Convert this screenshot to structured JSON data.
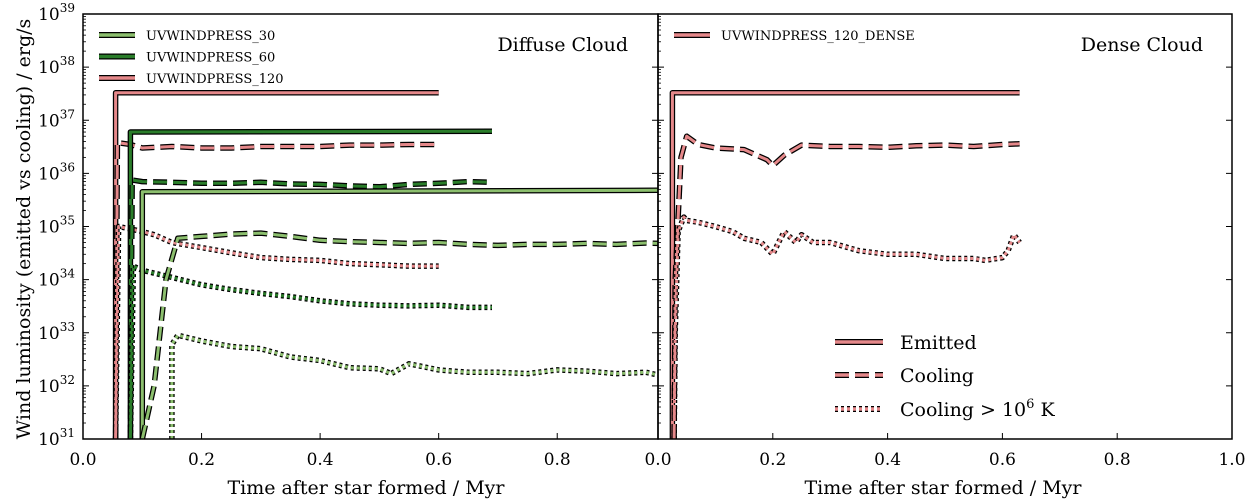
{
  "chart_data": [
    {
      "type": "line",
      "panel_label": "Diffuse Cloud",
      "xlabel": "Time after star formed / Myr",
      "ylabel": "Wind luminosity (emitted vs cooling) / erg/s",
      "xlim": [
        0.0,
        0.97
      ],
      "ylim": [
        1e+31,
        1e+39
      ],
      "yscale": "log",
      "x_ticks": [
        "0.0",
        "0.2",
        "0.4",
        "0.6",
        "0.8"
      ],
      "y_ticks": [
        "10^31",
        "10^32",
        "10^33",
        "10^34",
        "10^35",
        "10^36",
        "10^37",
        "10^38",
        "10^39"
      ],
      "legend": {
        "position": "top-left",
        "entries": [
          "UVWINDPRESS_30",
          "UVWINDPRESS_60",
          "UVWINDPRESS_120"
        ]
      },
      "series": [
        {
          "name": "UVWINDPRESS_120",
          "kind": "emitted",
          "color": "#e5888a",
          "x": [
            0.055,
            0.055,
            0.6
          ],
          "y": [
            1e+31,
            3.3e+37,
            3.3e+37
          ]
        },
        {
          "name": "UVWINDPRESS_120",
          "kind": "cooling",
          "color": "#e5888a",
          "x": [
            0.055,
            0.058,
            0.08,
            0.1,
            0.15,
            0.2,
            0.25,
            0.3,
            0.35,
            0.4,
            0.45,
            0.5,
            0.55,
            0.6
          ],
          "y": [
            1e+31,
            3.8e+36,
            3.5e+36,
            3e+36,
            3.2e+36,
            3e+36,
            3e+36,
            3.2e+36,
            3.2e+36,
            3.2e+36,
            3.4e+36,
            3.4e+36,
            3.5e+36,
            3.5e+36
          ]
        },
        {
          "name": "UVWINDPRESS_120",
          "kind": "cooling_hot",
          "color": "#e5888a",
          "x": [
            0.055,
            0.06,
            0.08,
            0.1,
            0.12,
            0.15,
            0.2,
            0.25,
            0.3,
            0.35,
            0.4,
            0.45,
            0.5,
            0.55,
            0.6
          ],
          "y": [
            1e+31,
            1e+35,
            9e+34,
            8e+34,
            7e+34,
            5e+34,
            4e+34,
            3.2e+34,
            2.6e+34,
            2.4e+34,
            2.3e+34,
            2e+34,
            1.9e+34,
            1.8e+34,
            1.8e+34
          ]
        },
        {
          "name": "UVWINDPRESS_60",
          "kind": "emitted",
          "color": "#2a7d2a",
          "x": [
            0.08,
            0.08,
            0.69
          ],
          "y": [
            1e+31,
            6e+36,
            6.2e+36
          ]
        },
        {
          "name": "UVWINDPRESS_60",
          "kind": "cooling",
          "color": "#2a7d2a",
          "x": [
            0.08,
            0.083,
            0.1,
            0.15,
            0.2,
            0.25,
            0.3,
            0.35,
            0.4,
            0.45,
            0.5,
            0.55,
            0.6,
            0.65,
            0.69
          ],
          "y": [
            1e+31,
            7.5e+35,
            7e+35,
            6.8e+35,
            6.5e+35,
            6.5e+35,
            6.8e+35,
            6.3e+35,
            6.2e+35,
            5.8e+35,
            5.6e+35,
            6.2e+35,
            6.5e+35,
            7e+35,
            6.8e+35
          ]
        },
        {
          "name": "UVWINDPRESS_60",
          "kind": "cooling_hot",
          "color": "#2a7d2a",
          "x": [
            0.08,
            0.085,
            0.1,
            0.15,
            0.2,
            0.25,
            0.3,
            0.35,
            0.4,
            0.45,
            0.5,
            0.55,
            0.6,
            0.65,
            0.69
          ],
          "y": [
            1e+31,
            1.8e+34,
            1.5e+34,
            1.1e+34,
            8e+33,
            6.5e+33,
            5.5e+33,
            4.8e+33,
            4e+33,
            3.5e+33,
            3.3e+33,
            3.2e+33,
            3.3e+33,
            3e+33,
            3e+33
          ]
        },
        {
          "name": "UVWINDPRESS_30",
          "kind": "emitted",
          "color": "#8cbf6e",
          "x": [
            0.1,
            0.1,
            0.97
          ],
          "y": [
            1e+31,
            4.5e+35,
            4.8e+35
          ]
        },
        {
          "name": "UVWINDPRESS_30",
          "kind": "cooling",
          "color": "#8cbf6e",
          "x": [
            0.1,
            0.12,
            0.14,
            0.16,
            0.2,
            0.25,
            0.3,
            0.35,
            0.4,
            0.45,
            0.5,
            0.55,
            0.6,
            0.65,
            0.7,
            0.75,
            0.8,
            0.85,
            0.9,
            0.95,
            0.97
          ],
          "y": [
            1e+31,
            1e+32,
            1e+34,
            6e+34,
            6.5e+34,
            7.2e+34,
            7.5e+34,
            6.5e+34,
            5.5e+34,
            5.2e+34,
            5e+34,
            4.8e+34,
            5e+34,
            4.6e+34,
            4.4e+34,
            4.6e+34,
            4.6e+34,
            4.8e+34,
            4.6e+34,
            4.9e+34,
            4.8e+34
          ]
        },
        {
          "name": "UVWINDPRESS_30",
          "kind": "cooling_hot",
          "color": "#8cbf6e",
          "x": [
            0.15,
            0.15,
            0.16,
            0.2,
            0.25,
            0.3,
            0.35,
            0.4,
            0.45,
            0.5,
            0.52,
            0.55,
            0.6,
            0.65,
            0.7,
            0.75,
            0.8,
            0.85,
            0.9,
            0.95,
            0.97
          ],
          "y": [
            1e+31,
            6e+32,
            9e+32,
            7e+32,
            5.5e+32,
            5e+32,
            3.5e+32,
            3e+32,
            2.2e+32,
            2.1e+32,
            1.7e+32,
            2.6e+32,
            2e+32,
            1.8e+32,
            1.8e+32,
            1.7e+32,
            2e+32,
            1.9e+32,
            1.7e+32,
            1.8e+32,
            1.6e+32
          ]
        }
      ]
    },
    {
      "type": "line",
      "panel_label": "Dense Cloud",
      "xlabel": "Time after star formed / Myr",
      "xlim": [
        0.0,
        1.0
      ],
      "ylim": [
        1e+31,
        1e+39
      ],
      "yscale": "log",
      "x_ticks": [
        "0.0",
        "0.2",
        "0.4",
        "0.6",
        "0.8",
        "1.0"
      ],
      "legend": {
        "position": "top-left",
        "entries": [
          "UVWINDPRESS_120_DENSE"
        ]
      },
      "style_legend": {
        "position": "lower-center",
        "entries": [
          "Emitted",
          "Cooling",
          "Cooling > 10^6 K"
        ]
      },
      "series": [
        {
          "name": "UVWINDPRESS_120_DENSE",
          "kind": "emitted",
          "color": "#e5888a",
          "x": [
            0.025,
            0.025,
            0.63
          ],
          "y": [
            1e+31,
            3.3e+37,
            3.3e+37
          ]
        },
        {
          "name": "UVWINDPRESS_120_DENSE",
          "kind": "cooling",
          "color": "#e5888a",
          "x": [
            0.028,
            0.03,
            0.04,
            0.05,
            0.07,
            0.1,
            0.15,
            0.19,
            0.2,
            0.22,
            0.25,
            0.3,
            0.35,
            0.4,
            0.45,
            0.5,
            0.55,
            0.6,
            0.63
          ],
          "y": [
            1e+31,
            1e+34,
            2e+36,
            5e+36,
            3.5e+36,
            3e+36,
            2.8e+36,
            1.8e+36,
            1.4e+36,
            2.2e+36,
            3.4e+36,
            3.2e+36,
            3.2e+36,
            3.1e+36,
            3.3e+36,
            3.4e+36,
            3.2e+36,
            3.5e+36,
            3.6e+36
          ]
        },
        {
          "name": "UVWINDPRESS_120_DENSE",
          "kind": "cooling_hot",
          "color": "#e5888a",
          "x": [
            0.028,
            0.03,
            0.035,
            0.045,
            0.05,
            0.07,
            0.1,
            0.13,
            0.15,
            0.18,
            0.2,
            0.21,
            0.22,
            0.24,
            0.25,
            0.27,
            0.3,
            0.35,
            0.4,
            0.45,
            0.5,
            0.55,
            0.57,
            0.6,
            0.61,
            0.62,
            0.63
          ],
          "y": [
            1e+31,
            1e+33,
            8e+34,
            1.5e+35,
            1.3e+35,
            1.2e+35,
            1e+35,
            8e+34,
            6e+34,
            5e+34,
            3e+34,
            5e+34,
            8e+34,
            5e+34,
            7e+34,
            5e+34,
            5e+34,
            3.5e+34,
            3e+34,
            3e+34,
            2.5e+34,
            2.5e+34,
            2.3e+34,
            2.6e+34,
            3.5e+34,
            7e+34,
            5e+34
          ]
        }
      ]
    }
  ],
  "style_legend_labels": {
    "emitted": "Emitted",
    "cooling": "Cooling",
    "cooling_hot": "Cooling > 10",
    "cooling_hot_exp": "6",
    "cooling_hot_unit": " K"
  }
}
